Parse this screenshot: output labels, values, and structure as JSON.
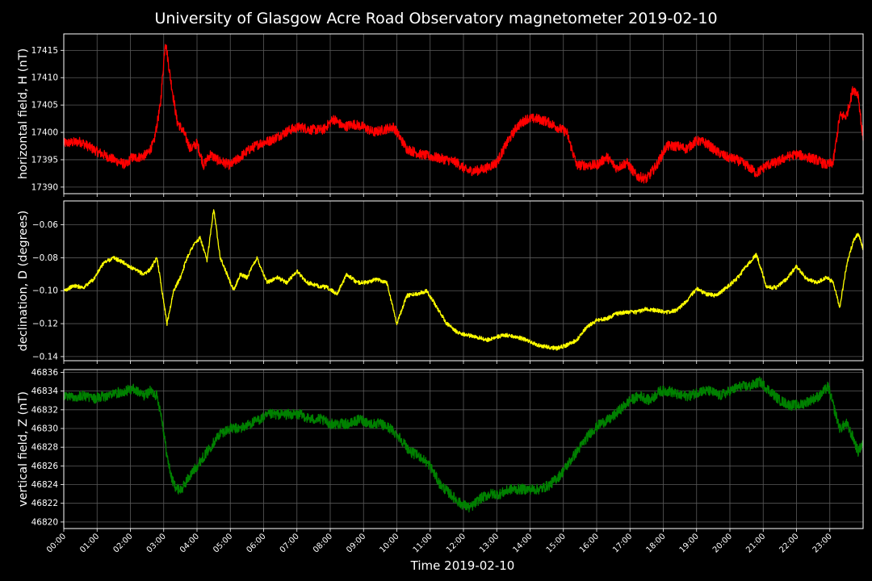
{
  "title": "University of Glasgow Acre Road Observatory magnetometer 2019-02-10",
  "xlabel": "Time 2019-02-10",
  "x_ticks": [
    "00:00",
    "01:00",
    "02:00",
    "03:00",
    "04:00",
    "05:00",
    "06:00",
    "07:00",
    "08:00",
    "09:00",
    "10:00",
    "11:00",
    "12:00",
    "13:00",
    "14:00",
    "15:00",
    "16:00",
    "17:00",
    "18:00",
    "19:00",
    "20:00",
    "21:00",
    "22:00",
    "23:00"
  ],
  "chart_data": [
    {
      "type": "line",
      "ylabel": "horizontal field, H (nT)",
      "color": "#ff0000",
      "xlim": [
        0,
        24
      ],
      "ylim": [
        17388.8,
        17418
      ],
      "yticks": [
        17390,
        17395,
        17400,
        17405,
        17410,
        17415
      ],
      "grid": true,
      "x": [
        0,
        0.5,
        1,
        1.5,
        1.9,
        2,
        2.3,
        2.5,
        2.7,
        2.9,
        3.05,
        3.2,
        3.4,
        3.6,
        3.8,
        4,
        4.2,
        4.4,
        4.6,
        4.8,
        5,
        5.3,
        5.6,
        5.9,
        6.2,
        6.5,
        6.8,
        7.1,
        7.4,
        7.8,
        8.1,
        8.4,
        8.7,
        9,
        9.3,
        9.6,
        9.9,
        10.3,
        10.7,
        11.1,
        11.5,
        11.8,
        12.1,
        12.4,
        12.7,
        13.0,
        13.3,
        13.6,
        13.9,
        14.2,
        14.5,
        14.8,
        15.1,
        15.4,
        15.7,
        16.0,
        16.3,
        16.6,
        16.9,
        17.2,
        17.5,
        17.8,
        18.1,
        18.4,
        18.7,
        19.0,
        19.3,
        19.6,
        19.9,
        20.2,
        20.5,
        20.8,
        21.1,
        21.4,
        21.7,
        22.0,
        22.3,
        22.6,
        22.9,
        23.1,
        23.3,
        23.5,
        23.7,
        23.85,
        24
      ],
      "y": [
        17398,
        17398.3,
        17396.5,
        17395,
        17394,
        17395.3,
        17395.5,
        17396,
        17398,
        17405,
        17416.8,
        17410,
        17402,
        17400,
        17397,
        17398,
        17394,
        17396,
        17395,
        17394.5,
        17394,
        17395.5,
        17397,
        17398,
        17398.5,
        17399.5,
        17400.5,
        17401,
        17400.5,
        17400.5,
        17402.5,
        17401,
        17401.5,
        17401,
        17400,
        17400.5,
        17401,
        17397,
        17396,
        17395.5,
        17395,
        17394.5,
        17393,
        17393,
        17393.5,
        17394.5,
        17398,
        17401,
        17402.5,
        17402.5,
        17402,
        17401,
        17400,
        17394,
        17394,
        17394,
        17395.5,
        17393.5,
        17394.5,
        17392,
        17391.5,
        17394,
        17397.5,
        17397.5,
        17397,
        17398.5,
        17398,
        17396.5,
        17395.5,
        17395,
        17394,
        17392.5,
        17394,
        17394.5,
        17395.5,
        17396,
        17395.5,
        17395,
        17394,
        17394.5,
        17403,
        17403,
        17408,
        17407,
        17398.5
      ]
    },
    {
      "type": "line",
      "ylabel": "declination, D (degrees)",
      "color": "#ffff00",
      "xlim": [
        0,
        24
      ],
      "ylim": [
        -0.1425,
        -0.0455
      ],
      "yticks": [
        -0.14,
        -0.12,
        -0.1,
        -0.08,
        -0.06
      ],
      "grid": true,
      "x": [
        0,
        0.3,
        0.6,
        0.9,
        1.2,
        1.5,
        1.8,
        2.1,
        2.4,
        2.6,
        2.8,
        2.95,
        3.1,
        3.3,
        3.5,
        3.7,
        3.9,
        4.1,
        4.3,
        4.5,
        4.7,
        4.9,
        5.1,
        5.3,
        5.5,
        5.8,
        6.1,
        6.4,
        6.7,
        7.0,
        7.3,
        7.6,
        7.9,
        8.2,
        8.5,
        8.8,
        9.1,
        9.4,
        9.7,
        10.0,
        10.3,
        10.6,
        10.9,
        11.2,
        11.5,
        11.8,
        12.1,
        12.4,
        12.7,
        13.0,
        13.3,
        13.6,
        13.9,
        14.2,
        14.5,
        14.8,
        15.1,
        15.4,
        15.7,
        16.0,
        16.3,
        16.6,
        16.9,
        17.2,
        17.5,
        17.8,
        18.1,
        18.4,
        18.7,
        19.0,
        19.3,
        19.6,
        19.9,
        20.2,
        20.5,
        20.8,
        21.1,
        21.4,
        21.7,
        22.0,
        22.3,
        22.6,
        22.9,
        23.1,
        23.3,
        23.5,
        23.7,
        23.85,
        24
      ],
      "y": [
        -0.1,
        -0.097,
        -0.098,
        -0.093,
        -0.083,
        -0.08,
        -0.083,
        -0.087,
        -0.09,
        -0.087,
        -0.08,
        -0.1,
        -0.12,
        -0.1,
        -0.092,
        -0.08,
        -0.072,
        -0.068,
        -0.082,
        -0.05,
        -0.08,
        -0.09,
        -0.1,
        -0.09,
        -0.092,
        -0.08,
        -0.095,
        -0.092,
        -0.095,
        -0.088,
        -0.095,
        -0.097,
        -0.098,
        -0.102,
        -0.09,
        -0.095,
        -0.095,
        -0.093,
        -0.095,
        -0.12,
        -0.103,
        -0.102,
        -0.1,
        -0.11,
        -0.12,
        -0.125,
        -0.127,
        -0.128,
        -0.13,
        -0.128,
        -0.127,
        -0.128,
        -0.13,
        -0.133,
        -0.134,
        -0.135,
        -0.133,
        -0.13,
        -0.122,
        -0.118,
        -0.117,
        -0.114,
        -0.113,
        -0.113,
        -0.111,
        -0.112,
        -0.113,
        -0.112,
        -0.106,
        -0.099,
        -0.102,
        -0.103,
        -0.098,
        -0.093,
        -0.085,
        -0.078,
        -0.098,
        -0.098,
        -0.093,
        -0.085,
        -0.093,
        -0.095,
        -0.092,
        -0.095,
        -0.11,
        -0.085,
        -0.07,
        -0.065,
        -0.075
      ]
    },
    {
      "type": "line",
      "ylabel": "vertical field, Z (nT)",
      "color": "#008000",
      "xlim": [
        0,
        24
      ],
      "ylim": [
        46819.3,
        46836.3
      ],
      "yticks": [
        46820,
        46822,
        46824,
        46826,
        46828,
        46830,
        46832,
        46834,
        46836
      ],
      "grid": true,
      "x": [
        0,
        0.3,
        0.6,
        0.9,
        1.2,
        1.5,
        1.8,
        2.1,
        2.4,
        2.6,
        2.8,
        2.95,
        3.1,
        3.25,
        3.4,
        3.55,
        3.7,
        3.9,
        4.1,
        4.3,
        4.5,
        4.7,
        5.0,
        5.3,
        5.6,
        5.9,
        6.2,
        6.5,
        6.8,
        7.1,
        7.4,
        7.7,
        8.0,
        8.3,
        8.6,
        8.9,
        9.2,
        9.5,
        9.8,
        10.1,
        10.4,
        10.7,
        11.0,
        11.3,
        11.6,
        11.9,
        12.2,
        12.5,
        12.8,
        13.1,
        13.4,
        13.7,
        14.0,
        14.3,
        14.6,
        14.9,
        15.2,
        15.5,
        15.8,
        16.1,
        16.4,
        16.7,
        17.0,
        17.3,
        17.6,
        17.9,
        18.2,
        18.5,
        18.8,
        19.1,
        19.4,
        19.7,
        20.0,
        20.3,
        20.6,
        20.9,
        21.2,
        21.5,
        21.8,
        22.1,
        22.4,
        22.7,
        22.95,
        23.1,
        23.3,
        23.5,
        23.7,
        23.85,
        24
      ],
      "y": [
        46833.5,
        46833.4,
        46833.5,
        46833.2,
        46833.4,
        46833.7,
        46834,
        46834.2,
        46833.5,
        46834,
        46833.5,
        46831,
        46827,
        46824.5,
        46823.5,
        46823.5,
        46824.5,
        46825.5,
        46826.5,
        46827.5,
        46828.5,
        46829.5,
        46830,
        46830,
        46830.5,
        46831,
        46831.5,
        46831.5,
        46831.5,
        46831.5,
        46831,
        46831,
        46830.5,
        46830.5,
        46830.5,
        46831,
        46830.5,
        46830.5,
        46830,
        46829,
        46827.5,
        46827,
        46826,
        46824,
        46823,
        46822,
        46821.5,
        46822.5,
        46823,
        46823,
        46823.5,
        46823.5,
        46823.5,
        46823.5,
        46824,
        46825,
        46826.5,
        46828,
        46829.5,
        46830.5,
        46831,
        46832,
        46833,
        46833.5,
        46833,
        46834,
        46834,
        46833.5,
        46833.5,
        46834,
        46834,
        46833.5,
        46834,
        46834.5,
        46834.5,
        46835,
        46834,
        46833,
        46832.5,
        46832.5,
        46833,
        46833.5,
        46834.5,
        46832.5,
        46830,
        46830.5,
        46829,
        46827.5,
        46828.5
      ]
    }
  ]
}
